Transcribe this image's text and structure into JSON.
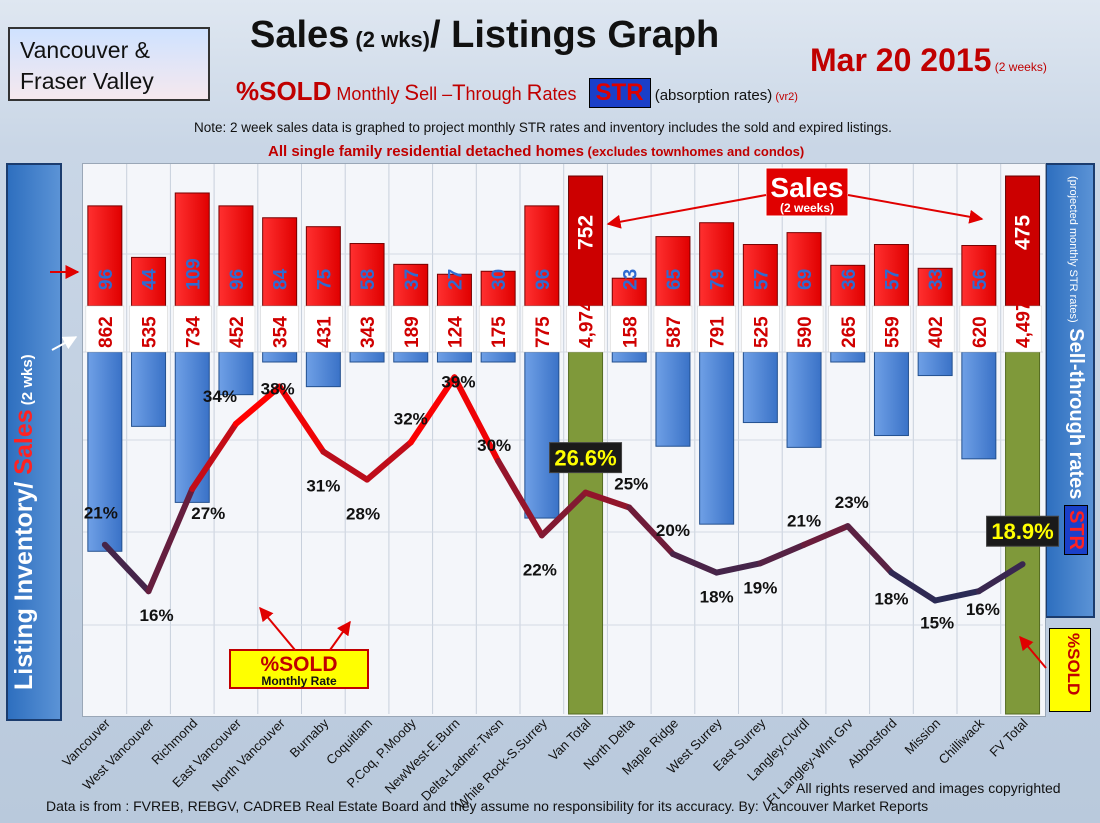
{
  "region": {
    "line1": "Vancouver &",
    "line2": "Fraser Valley"
  },
  "title": {
    "main": "Sales",
    "small": " (2 wks)",
    "rest": "/ Listings Graph"
  },
  "date": {
    "main": "Mar 20 2015",
    "small": " (2 weeks)"
  },
  "subtitle": {
    "p1": "%SOLD",
    "p2": " Monthly ",
    "p3": "S",
    "p4": "ell –",
    "p5": "T",
    "p6": "hrough ",
    "p7": "R",
    "p8": "ates",
    "str": "STR",
    "absorption": " (absorption rates)",
    "ver": " (vr2)"
  },
  "note": "Note: 2 week sales data is graphed to project monthly STR rates and inventory includes the sold and expired listings.",
  "note2_main": "All single family residential detached homes",
  "note2_small": " (excludes townhomes and condos)",
  "left_axis": {
    "a": "Listing Inventory/ ",
    "b": "Sales",
    "c": " (2 wks)"
  },
  "right_axis": {
    "a": "STR",
    "b": " Sell-through rates ",
    "c": "(projected monthly STR rates)"
  },
  "right_badge": "%SOLD",
  "annotations": {
    "sales_title": "Sales",
    "sales_sub": "(2 weeks)",
    "sold_title": "%SOLD",
    "sold_sub": "Monthly Rate"
  },
  "footer": {
    "rights": "All rights reserved and  images copyrighted",
    "source": "Data is from : FVREB, REBGV, CADREB Real Estate Board and they assume no responsibility for its accuracy. By: Vancouver Market Reports"
  },
  "colors": {
    "sales": "#ff0000",
    "total_sales": "#cc0000",
    "listings": "#4f86d8",
    "total_listings": "#7f993a",
    "line_high": "#ff0000",
    "line_low": "#2a2a55"
  },
  "chart_data": {
    "type": "bar",
    "categories": [
      "Vancouver",
      "West Vancouver",
      "Richmond",
      "East Vancouver",
      "North Vancouver",
      "Burnaby",
      "Coquitlam",
      "P.Coq, P.Moody",
      "NewWest-E.Burn",
      "Delta-Ladner-Twsn",
      "White Rock-S.Surrey",
      "Van Total",
      "North Delta",
      "Maple Ridge",
      "West Surrey",
      "East Surrey",
      "Langley,Clvrdl",
      "Ft Langley-Wlnt Grv",
      "Abbotsford",
      "Mission",
      "Chilliwack",
      "FV Total"
    ],
    "series": [
      {
        "name": "Sales (2 weeks)",
        "values": [
          96,
          44,
          109,
          96,
          84,
          75,
          58,
          37,
          27,
          30,
          96,
          752,
          23,
          65,
          79,
          57,
          69,
          36,
          57,
          33,
          56,
          475
        ]
      },
      {
        "name": "Listing Inventory",
        "values": [
          862,
          535,
          734,
          452,
          354,
          431,
          343,
          189,
          124,
          175,
          775,
          4974,
          158,
          587,
          791,
          525,
          590,
          265,
          559,
          402,
          620,
          4497
        ]
      },
      {
        "name": "%SOLD Monthly Rate",
        "values": [
          21,
          16,
          27,
          34,
          38,
          31,
          28,
          32,
          39,
          30,
          22,
          26.6,
          25,
          20,
          18,
          19,
          21,
          23,
          18,
          15,
          16,
          18.9
        ]
      }
    ],
    "pct_labels": [
      "21%",
      "16%",
      "27%",
      "34%",
      "38%",
      "31%",
      "28%",
      "32%",
      "39%",
      "30%",
      "22%",
      "26.6%",
      "25%",
      "20%",
      "18%",
      "19%",
      "21%",
      "23%",
      "18%",
      "15%",
      "16%",
      "18.9%"
    ],
    "listing_labels": [
      "862",
      "535",
      "734",
      "452",
      "354",
      "431",
      "343",
      "189",
      "124",
      "175",
      "775",
      "4,974",
      "158",
      "587",
      "791",
      "525",
      "590",
      "265",
      "559",
      "402",
      "620",
      "4,497"
    ],
    "totals": [
      "Van Total",
      "FV Total"
    ]
  }
}
